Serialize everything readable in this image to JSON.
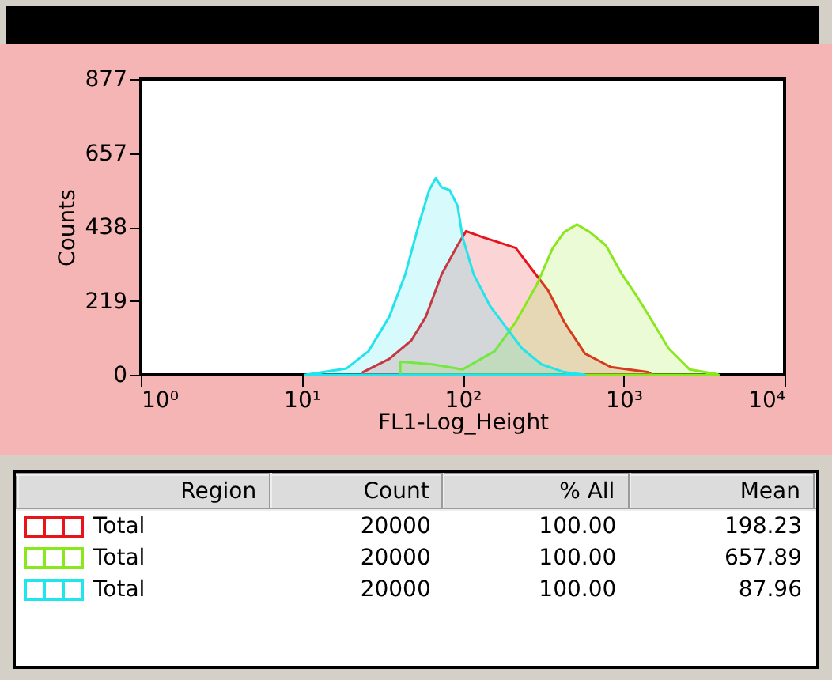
{
  "chart_data": {
    "type": "area",
    "xlabel": "FL1-Log_Height",
    "ylabel": "Counts",
    "log": "x",
    "xlim": [
      1,
      10000
    ],
    "xticks": [
      {
        "value": 1,
        "label": "10⁰"
      },
      {
        "value": 10,
        "label": "10¹"
      },
      {
        "value": 100,
        "label": "10²"
      },
      {
        "value": 1000,
        "label": "10³"
      },
      {
        "value": 10000,
        "label": "10⁴"
      }
    ],
    "ylim": [
      0,
      877
    ],
    "yticks": [
      0,
      219,
      438,
      657,
      877
    ],
    "legend": "bottom",
    "series": [
      {
        "name": "Total",
        "color": "#e8141c",
        "x": [
          24,
          35,
          48,
          59,
          74,
          93,
          105,
          135,
          170,
          214,
          269,
          339,
          427,
          575,
          832,
          1413,
          1514
        ],
        "values": [
          8,
          47,
          102,
          172,
          298,
          384,
          426,
          407,
          392,
          376,
          313,
          251,
          157,
          63,
          23,
          8,
          0
        ]
      },
      {
        "name": "Total",
        "color": "#88e81c",
        "x": [
          41,
          65,
          100,
          158,
          214,
          288,
          363,
          427,
          513,
          617,
          776,
          977,
          1202,
          1514,
          1905,
          2570,
          3715,
          3890
        ],
        "values": [
          39,
          31,
          16,
          70,
          157,
          266,
          376,
          423,
          446,
          423,
          384,
          298,
          235,
          157,
          78,
          16,
          3,
          0
        ]
      },
      {
        "name": "Total",
        "color": "#22e4ec",
        "x": [
          10.5,
          19,
          26,
          35,
          44,
          54,
          62,
          68,
          74,
          83,
          93,
          100,
          117,
          148,
          186,
          234,
          309,
          427,
          575
        ],
        "values": [
          0,
          19,
          70,
          172,
          298,
          454,
          548,
          583,
          556,
          548,
          501,
          407,
          298,
          204,
          141,
          78,
          31,
          8,
          0
        ]
      }
    ],
    "annotations": [
      "Region",
      "Count",
      "% All",
      "Mean",
      "20000",
      "100.00",
      "198.23",
      "20000",
      "100.00",
      "657.89",
      "20000",
      "100.00",
      "87.96"
    ]
  }
}
